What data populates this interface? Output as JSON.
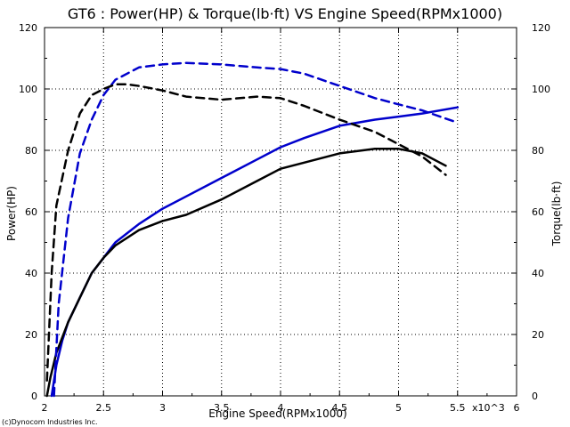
{
  "chart_data": {
    "type": "line",
    "title": "GT6 : Power(HP) & Torque(lb·ft) VS Engine Speed(RPMx1000)",
    "xlabel": "Engine Speed(RPMx1000)",
    "ylabel": "Power(HP)",
    "y2label": "Torque(lb·ft)",
    "x_multiplier_label": "x10^3",
    "credit": "(c)Dynocom Industries Inc.",
    "xlim": [
      2,
      6
    ],
    "ylim": [
      0,
      120
    ],
    "y2lim": [
      0,
      120
    ],
    "x_ticks": [
      "2",
      "2.5",
      "3",
      "3.5",
      "4",
      "4.5",
      "5",
      "5.5",
      "6"
    ],
    "y_ticks": [
      "0",
      "20",
      "40",
      "60",
      "80",
      "100",
      "120"
    ],
    "grid": true,
    "legend": "none",
    "series": [
      {
        "axis": "left",
        "style": "solid",
        "color": "#0000cc",
        "x": [
          2.06,
          2.1,
          2.15,
          2.2,
          2.3,
          2.4,
          2.5,
          2.6,
          2.8,
          3.0,
          3.2,
          3.5,
          3.8,
          4.0,
          4.2,
          4.5,
          4.8,
          5.0,
          5.2,
          5.5
        ],
        "y": [
          0,
          10,
          18,
          24,
          32,
          40,
          45,
          50,
          56,
          61,
          65,
          71,
          77,
          81,
          84,
          88,
          90,
          91,
          92,
          94
        ]
      },
      {
        "axis": "left",
        "style": "solid",
        "color": "#000000",
        "x": [
          2.02,
          2.05,
          2.1,
          2.2,
          2.3,
          2.4,
          2.5,
          2.6,
          2.8,
          3.0,
          3.2,
          3.5,
          3.8,
          4.0,
          4.2,
          4.5,
          4.8,
          5.0,
          5.2,
          5.4
        ],
        "y": [
          0,
          6,
          14,
          24,
          32,
          40,
          45,
          49,
          54,
          57,
          59,
          64,
          70,
          74,
          76,
          79,
          80.5,
          80.5,
          79,
          75
        ]
      },
      {
        "axis": "right",
        "style": "dashed",
        "color": "#0000cc",
        "x": [
          2.08,
          2.12,
          2.2,
          2.3,
          2.4,
          2.5,
          2.6,
          2.8,
          3.0,
          3.2,
          3.5,
          3.8,
          4.0,
          4.2,
          4.5,
          4.8,
          5.0,
          5.2,
          5.5
        ],
        "y": [
          0,
          30,
          58,
          79,
          90,
          98,
          103,
          107,
          108,
          108.5,
          108,
          107,
          106.5,
          105,
          101,
          97,
          95,
          93,
          89
        ]
      },
      {
        "axis": "right",
        "style": "dashed",
        "color": "#000000",
        "x": [
          2.02,
          2.06,
          2.1,
          2.2,
          2.3,
          2.4,
          2.5,
          2.6,
          2.7,
          2.8,
          3.0,
          3.2,
          3.5,
          3.8,
          4.0,
          4.2,
          4.5,
          4.8,
          5.0,
          5.2,
          5.4
        ],
        "y": [
          5,
          40,
          62,
          80,
          92,
          98,
          100,
          101.5,
          101.5,
          101,
          99.5,
          97.5,
          96.5,
          97.5,
          97,
          94.5,
          90,
          86,
          82,
          78,
          72
        ]
      }
    ]
  }
}
